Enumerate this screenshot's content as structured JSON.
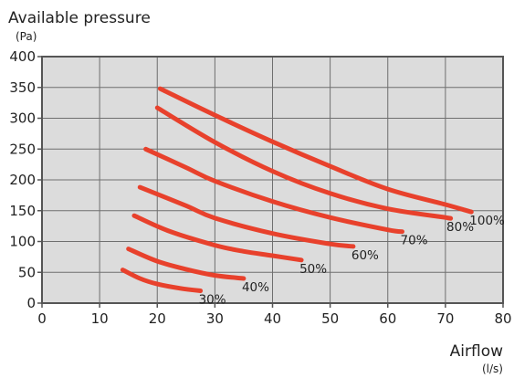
{
  "chart_data": {
    "type": "line",
    "title": "",
    "ylabel": "Available pressure",
    "ylabel_unit": "(Pa)",
    "xlabel": "Airflow",
    "xlabel_unit": "(l/s)",
    "xlim": [
      0,
      80
    ],
    "ylim": [
      0,
      400
    ],
    "xticks": [
      "0",
      "10",
      "20",
      "30",
      "40",
      "50",
      "60",
      "70",
      "80"
    ],
    "yticks": [
      "0",
      "50",
      "100",
      "150",
      "200",
      "250",
      "300",
      "350",
      "400"
    ],
    "grid": true,
    "background_color": "#dcdcdc",
    "series_color": "#e8412c",
    "series": [
      {
        "name": "100%",
        "points": [
          [
            20.5,
            348
          ],
          [
            30,
            305
          ],
          [
            40,
            262
          ],
          [
            50,
            222
          ],
          [
            60,
            185
          ],
          [
            70,
            160
          ],
          [
            74.5,
            148
          ]
        ]
      },
      {
        "name": "80%",
        "points": [
          [
            20,
            317
          ],
          [
            30,
            261
          ],
          [
            40,
            214
          ],
          [
            50,
            178
          ],
          [
            60,
            153
          ],
          [
            70,
            139
          ],
          [
            70.5,
            138
          ]
        ]
      },
      {
        "name": "70%",
        "points": [
          [
            18,
            250
          ],
          [
            25,
            220
          ],
          [
            30,
            198
          ],
          [
            40,
            165
          ],
          [
            50,
            139
          ],
          [
            60,
            119
          ],
          [
            62.5,
            116
          ]
        ]
      },
      {
        "name": "60%",
        "points": [
          [
            17,
            188
          ],
          [
            25,
            158
          ],
          [
            30,
            138
          ],
          [
            40,
            113
          ],
          [
            50,
            96
          ],
          [
            54,
            92
          ]
        ]
      },
      {
        "name": "50%",
        "points": [
          [
            16,
            142
          ],
          [
            22,
            117
          ],
          [
            30,
            94
          ],
          [
            35,
            84
          ],
          [
            40,
            77
          ],
          [
            45,
            70
          ]
        ]
      },
      {
        "name": "40%",
        "points": [
          [
            15,
            88
          ],
          [
            20,
            68
          ],
          [
            25,
            55
          ],
          [
            30,
            45
          ],
          [
            35,
            40
          ]
        ]
      },
      {
        "name": "30%",
        "points": [
          [
            14,
            54
          ],
          [
            17,
            40
          ],
          [
            20,
            31
          ],
          [
            24,
            24
          ],
          [
            27.5,
            20
          ]
        ]
      }
    ]
  }
}
